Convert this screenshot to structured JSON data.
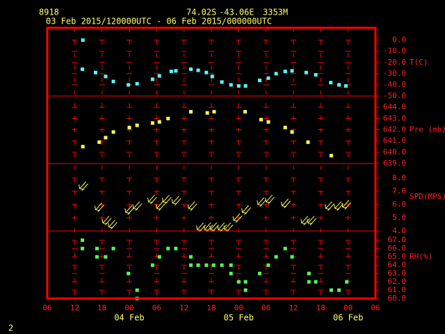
{
  "chart_data": {
    "type": "meteogram",
    "station": "8918",
    "latitude": "74.02S",
    "longitude": "-43.06E",
    "elevation": "3353M",
    "period": "03 Feb 2015/120000UTC - 06 Feb 2015/000000UTC",
    "page_number": "2",
    "frame_color": "#ff0000",
    "grid": true,
    "xlim": [
      0,
      72
    ],
    "xticks": [
      {
        "value": 0,
        "label": "06"
      },
      {
        "value": 6,
        "label": "12"
      },
      {
        "value": 12,
        "label": "18"
      },
      {
        "value": 18,
        "label": "00"
      },
      {
        "value": 24,
        "label": "06"
      },
      {
        "value": 30,
        "label": "12"
      },
      {
        "value": 36,
        "label": "18"
      },
      {
        "value": 42,
        "label": "00"
      },
      {
        "value": 48,
        "label": "06"
      },
      {
        "value": 54,
        "label": "12"
      },
      {
        "value": 60,
        "label": "18"
      },
      {
        "value": 66,
        "label": "00"
      },
      {
        "value": 72,
        "label": "06"
      }
    ],
    "date_labels": [
      {
        "value": 18,
        "label": "04 Feb"
      },
      {
        "value": 42,
        "label": "05 Feb"
      },
      {
        "value": 66,
        "label": "06 Feb"
      }
    ],
    "panels": [
      {
        "type": "scatter",
        "name": "T(C)",
        "color": "#55ffff",
        "ylim": [
          -50,
          11
        ],
        "yticks": [
          {
            "value": 0,
            "label": "0.0"
          },
          {
            "value": -10,
            "label": "-10.0"
          },
          {
            "value": -20,
            "label": "-20.0"
          },
          {
            "value": -30,
            "label": "-30.0"
          },
          {
            "value": -40,
            "label": "-40.0"
          },
          {
            "value": -50,
            "label": "-50.0"
          }
        ],
        "x": [
          7.8,
          7.7,
          10.6,
          12.8,
          14.5,
          17.8,
          19.7,
          23.1,
          24.6,
          27.2,
          28.2,
          31.5,
          33.1,
          34.9,
          36.2,
          38.3,
          40.3,
          42,
          43.5,
          46.6,
          48.5,
          50.2,
          52.2,
          53.7,
          56.8,
          58.9,
          62.2,
          64,
          65.5
        ],
        "values": [
          0,
          -26,
          -29,
          -32.5,
          -37,
          -40,
          -39,
          -35,
          -32,
          -28,
          -27.5,
          -26,
          -27,
          -29,
          -32.5,
          -37.5,
          -40,
          -41,
          -41,
          -36,
          -34,
          -30,
          -28,
          -27.5,
          -29,
          -31,
          -38,
          -40,
          -41
        ]
      },
      {
        "type": "scatter",
        "name": "Pre (mb)",
        "color": "#ffff55",
        "ylim": [
          639,
          645
        ],
        "yticks": [
          {
            "value": 644,
            "label": "644.0"
          },
          {
            "value": 643,
            "label": "643.0"
          },
          {
            "value": 642,
            "label": "642.0"
          },
          {
            "value": 641,
            "label": "641.0"
          },
          {
            "value": 640,
            "label": "640.0"
          },
          {
            "value": 639,
            "label": "639.0"
          }
        ],
        "x": [
          7.8,
          11.4,
          12.8,
          14.5,
          18,
          19.7,
          23.1,
          24.6,
          26.5,
          31.5,
          35.1,
          36.6,
          43.4,
          46.9,
          48.5,
          52.2,
          53.7,
          57.2,
          62.3
        ],
        "values": [
          640.5,
          640.9,
          641.3,
          641.8,
          642.2,
          642.4,
          642.6,
          642.7,
          643,
          643.6,
          643.5,
          643.6,
          643.6,
          642.9,
          642.7,
          642.2,
          641.8,
          640.9,
          639.7
        ]
      },
      {
        "type": "arrow",
        "name": "SPD(MPS)",
        "color": "#ffff55",
        "ylim": [
          4,
          9.1
        ],
        "yticks": [
          {
            "value": 8,
            "label": "8.0"
          },
          {
            "value": 7,
            "label": "7.0"
          },
          {
            "value": 6,
            "label": "6.0"
          },
          {
            "value": 5,
            "label": "5.0"
          },
          {
            "value": 4,
            "label": "4.0"
          }
        ],
        "x": [
          7.1,
          10.6,
          12.2,
          13.5,
          17.2,
          18.9,
          22.2,
          24,
          25.4,
          27.5,
          31,
          32.9,
          34.5,
          35.8,
          37.5,
          38.9,
          40.9,
          42.8,
          46.2,
          48,
          51.5,
          55.8,
          57.2,
          61.1,
          63.1,
          64.8
        ],
        "values": [
          7.2,
          5.6,
          4.6,
          4.3,
          5.4,
          5.7,
          6.2,
          5.7,
          6.2,
          6.1,
          5.7,
          4.1,
          4.1,
          4.1,
          4.1,
          4.1,
          4.8,
          5.4,
          6,
          6.2,
          5.9,
          4.6,
          4.6,
          5.7,
          5.7,
          5.8
        ]
      },
      {
        "type": "scatter",
        "name": "RH(%)",
        "color": "#55ff55",
        "ylim": [
          60,
          68.1
        ],
        "yticks": [
          {
            "value": 67,
            "label": "67.0"
          },
          {
            "value": 66,
            "label": "66.0"
          },
          {
            "value": 65,
            "label": "65.0"
          },
          {
            "value": 64,
            "label": "64.0"
          },
          {
            "value": 63,
            "label": "63.0"
          },
          {
            "value": 62,
            "label": "62.0"
          },
          {
            "value": 61,
            "label": "61.0"
          },
          {
            "value": 60,
            "label": "60.0"
          }
        ],
        "x": [
          7.7,
          7.7,
          10.9,
          10.9,
          12.8,
          14.5,
          17.8,
          19.7,
          19.7,
          23.1,
          24.6,
          26.5,
          28.2,
          31.5,
          31.5,
          33.1,
          34.9,
          36.5,
          38.3,
          40.3,
          40.3,
          42,
          43.5,
          43.5,
          46.6,
          48.5,
          50.2,
          52.2,
          53.7,
          57.4,
          57.4,
          58.9,
          62.3,
          64,
          65.7
        ],
        "values": [
          67,
          66,
          66,
          65,
          65,
          66,
          63,
          61,
          60,
          64,
          65,
          66,
          66,
          65,
          64,
          64,
          64,
          64,
          64,
          64,
          63,
          62,
          62,
          61,
          63,
          64,
          65,
          66,
          65,
          63,
          62,
          62,
          61,
          61,
          62
        ]
      }
    ]
  }
}
